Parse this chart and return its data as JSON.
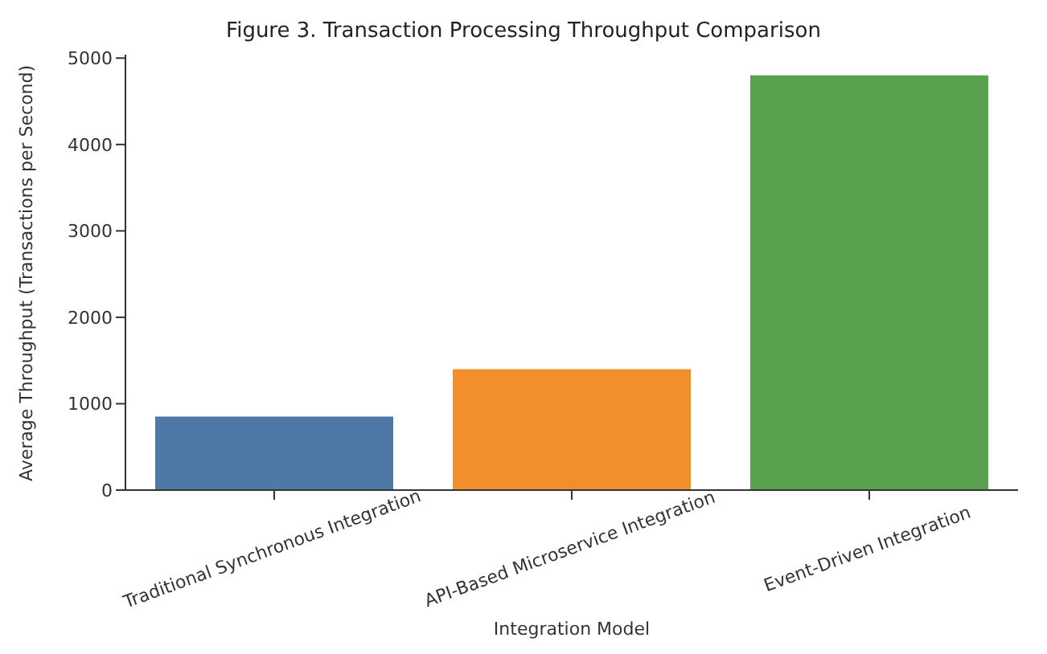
{
  "chart_data": {
    "type": "bar",
    "title": "Figure 3. Transaction Processing Throughput Comparison",
    "xlabel": "Integration Model",
    "ylabel": "Average Throughput (Transactions per Second)",
    "categories": [
      "Traditional Synchronous Integration",
      "API-Based Microservice Integration",
      "Event-Driven Integration"
    ],
    "values": [
      850,
      1400,
      4800
    ],
    "colors": [
      "#4e79a7",
      "#f28e2b",
      "#59a14f"
    ],
    "ylim": [
      0,
      5040
    ],
    "yticks": [
      0,
      1000,
      2000,
      3000,
      4000,
      5000
    ],
    "grid": false,
    "legend": false
  }
}
